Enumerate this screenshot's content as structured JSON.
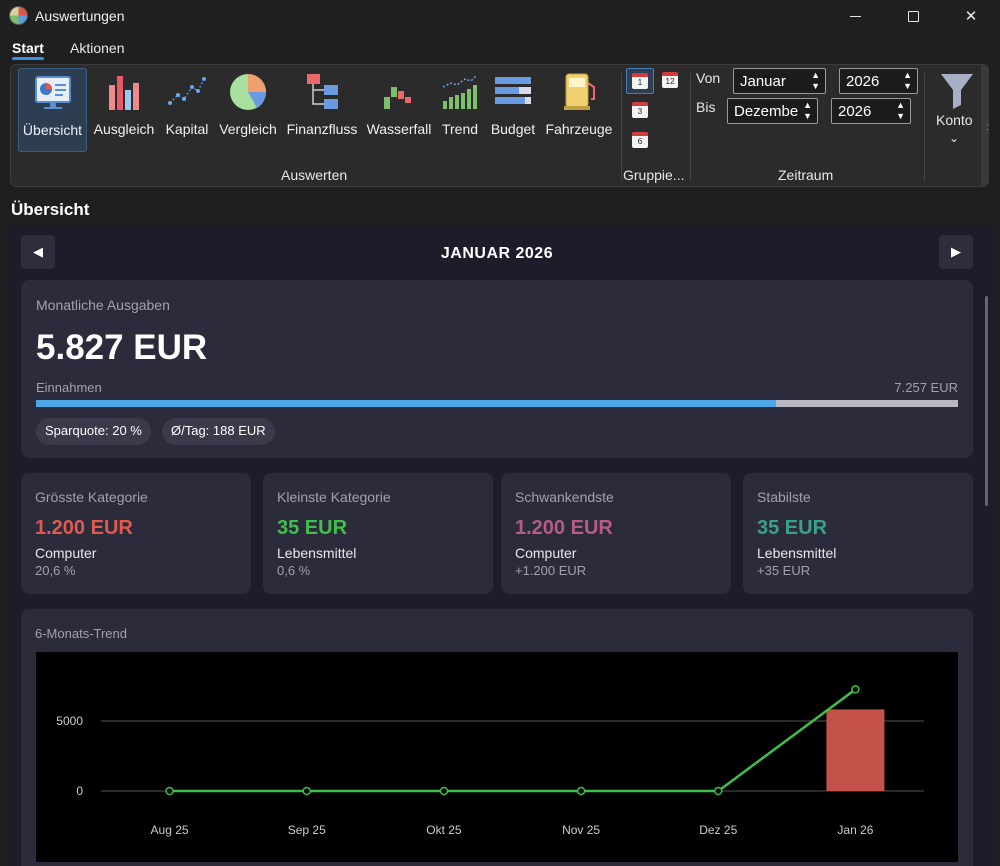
{
  "window": {
    "title": "Auswertungen"
  },
  "menu_tabs": [
    {
      "label": "Start",
      "active": true
    },
    {
      "label": "Aktionen",
      "active": false
    }
  ],
  "ribbon": {
    "buttons": [
      {
        "label": "Übersicht",
        "icon": "overview-icon",
        "selected": true
      },
      {
        "label": "Ausgleich",
        "icon": "bar-chart-icon"
      },
      {
        "label": "Kapital",
        "icon": "scatter-chart-icon"
      },
      {
        "label": "Vergleich",
        "icon": "pie-chart-icon"
      },
      {
        "label": "Finanzfluss",
        "icon": "flow-diagram-icon"
      },
      {
        "label": "Wasserfall",
        "icon": "waterfall-chart-icon"
      },
      {
        "label": "Trend",
        "icon": "trend-chart-icon"
      },
      {
        "label": "Budget",
        "icon": "budget-icon"
      },
      {
        "label": "Fahrzeuge",
        "icon": "fuel-pump-icon"
      }
    ],
    "group_auswerten": "Auswerten",
    "group_gruppieren": "Gruppie...",
    "group_zeitraum": "Zeitraum",
    "grouping_options": [
      "1",
      "12",
      "3",
      "6"
    ],
    "von_label": "Von",
    "bis_label": "Bis",
    "von_month": "Januar",
    "von_year": "2026",
    "bis_month": "Dezembe",
    "bis_year": "2026",
    "konto_label": "Konto"
  },
  "section_title": "Übersicht",
  "month_nav": {
    "title": "JANUAR 2026",
    "prev": "◀",
    "next": "▶"
  },
  "summary": {
    "label": "Monatliche Ausgaben",
    "value": "5.827 EUR",
    "income_label": "Einnahmen",
    "income_value": "7.257 EUR",
    "progress": 0.803,
    "savings_pill": "Sparquote: 20 %",
    "daily_pill": "Ø/Tag: 188 EUR"
  },
  "stats": [
    {
      "title": "Grösste Kategorie",
      "value": "1.200 EUR",
      "name": "Computer",
      "sub": "20,6 %",
      "color": "#e05a4e"
    },
    {
      "title": "Kleinste Kategorie",
      "value": "35 EUR",
      "name": "Lebensmittel",
      "sub": "0,6 %",
      "color": "#3ec04a"
    },
    {
      "title": "Schwankendste",
      "value": "1.200 EUR",
      "name": "Computer",
      "sub": "+1.200 EUR",
      "color": "#b55a8a"
    },
    {
      "title": "Stabilste",
      "value": "35 EUR",
      "name": "Lebensmittel",
      "sub": "+35 EUR",
      "color": "#3aa08a"
    }
  ],
  "trend": {
    "title": "6-Monats-Trend"
  },
  "chart_data": {
    "type": "line",
    "categories": [
      "Aug 25",
      "Sep 25",
      "Okt 25",
      "Nov 25",
      "Dez 25",
      "Jan 26"
    ],
    "series": [
      {
        "type": "line",
        "values": [
          0,
          0,
          0,
          0,
          0,
          7257
        ],
        "color": "#3ec04a"
      },
      {
        "type": "bar",
        "values": [
          null,
          null,
          null,
          null,
          null,
          5827
        ],
        "color": "#c5524a"
      }
    ],
    "yticks": [
      0,
      5000
    ],
    "ylim": [
      -1500,
      8500
    ],
    "grid": true
  }
}
